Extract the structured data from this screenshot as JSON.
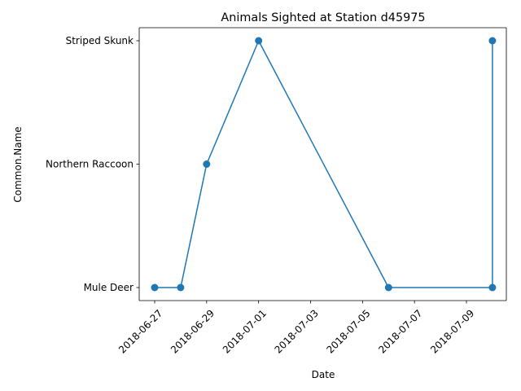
{
  "chart_data": {
    "type": "line",
    "title": "Animals Sighted at Station d45975",
    "xlabel": "Date",
    "ylabel": "Common.Name",
    "x_axis_type": "date",
    "y_axis_type": "category",
    "x_ticks": [
      "2018-06-27",
      "2018-06-29",
      "2018-07-01",
      "2018-07-03",
      "2018-07-05",
      "2018-07-07",
      "2018-07-09"
    ],
    "x_tick_rotation_deg": 45,
    "y_categories": [
      "Mule Deer",
      "Northern Raccoon",
      "Striped Skunk"
    ],
    "grid": false,
    "legend": "none",
    "marker": "circle",
    "series": [
      {
        "color": "#1f77b4",
        "points": [
          {
            "x": "2018-06-27",
            "y": "Mule Deer"
          },
          {
            "x": "2018-06-28",
            "y": "Mule Deer"
          },
          {
            "x": "2018-06-29",
            "y": "Northern Raccoon"
          },
          {
            "x": "2018-07-01",
            "y": "Striped Skunk"
          },
          {
            "x": "2018-07-06",
            "y": "Mule Deer"
          },
          {
            "x": "2018-07-10",
            "y": "Mule Deer"
          },
          {
            "x": "2018-07-10",
            "y": "Striped Skunk"
          }
        ]
      }
    ]
  }
}
